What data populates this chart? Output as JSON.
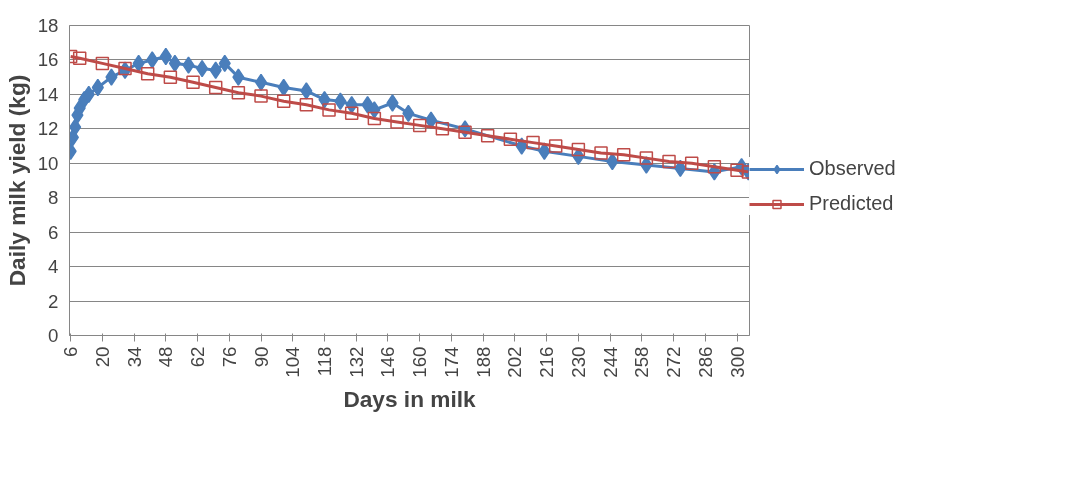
{
  "chart_data": {
    "type": "line",
    "xlabel": "Days in milk",
    "ylabel": "Daily milk yield (kg)",
    "xlim": [
      5.5,
      305.5
    ],
    "xticks": [
      6,
      20,
      34,
      48,
      62,
      76,
      90,
      104,
      118,
      132,
      146,
      160,
      174,
      188,
      202,
      216,
      230,
      244,
      258,
      272,
      286,
      300
    ],
    "ylim": [
      0,
      18
    ],
    "yticks": [
      0,
      2,
      4,
      6,
      8,
      10,
      12,
      14,
      16,
      18
    ],
    "grid": "y",
    "legend": "right",
    "series": [
      {
        "name": "Observed",
        "color": "#4a7ebb",
        "marker": "diamond",
        "x": [
          6,
          7,
          8,
          9,
          10,
          12,
          14,
          18,
          24,
          30,
          36,
          42,
          48,
          52,
          58,
          64,
          70,
          74,
          80,
          90,
          100,
          110,
          118,
          125,
          130,
          137,
          140,
          148,
          155,
          165,
          180,
          205,
          215,
          230,
          245,
          260,
          275,
          290,
          302,
          305
        ],
        "values": [
          10.7,
          11.5,
          12.1,
          12.8,
          13.2,
          13.7,
          14.0,
          14.4,
          15.0,
          15.4,
          15.8,
          16.0,
          16.2,
          15.8,
          15.7,
          15.5,
          15.4,
          15.8,
          15.0,
          14.7,
          14.4,
          14.2,
          13.7,
          13.6,
          13.4,
          13.4,
          13.1,
          13.5,
          12.9,
          12.5,
          12.0,
          11.0,
          10.7,
          10.4,
          10.1,
          9.9,
          9.7,
          9.5,
          9.8,
          9.5
        ]
      },
      {
        "name": "Predicted",
        "color": "#be4b48",
        "marker": "square",
        "x": [
          6,
          10,
          20,
          30,
          40,
          50,
          60,
          70,
          80,
          90,
          100,
          110,
          120,
          130,
          140,
          150,
          160,
          170,
          180,
          190,
          200,
          210,
          220,
          230,
          240,
          250,
          260,
          270,
          280,
          290,
          300,
          305
        ],
        "values": [
          16.2,
          16.1,
          15.8,
          15.5,
          15.2,
          15.0,
          14.7,
          14.4,
          14.1,
          13.9,
          13.6,
          13.4,
          13.1,
          12.9,
          12.6,
          12.4,
          12.2,
          12.0,
          11.8,
          11.6,
          11.4,
          11.2,
          11.0,
          10.8,
          10.6,
          10.5,
          10.3,
          10.1,
          10.0,
          9.8,
          9.6,
          9.5
        ]
      }
    ]
  }
}
